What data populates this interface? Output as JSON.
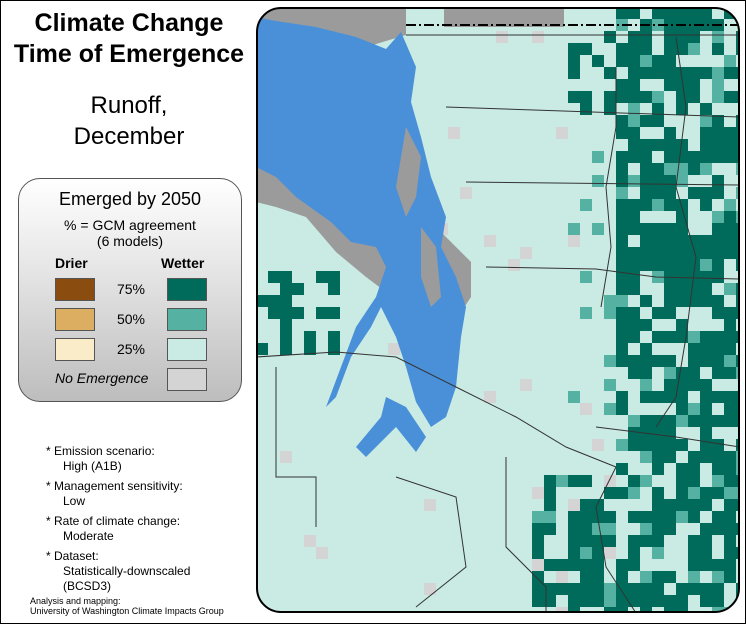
{
  "title_line1": "Climate Change",
  "title_line2": "Time of Emergence",
  "subtitle_line1": "Runoff,",
  "subtitle_line2": "December",
  "legend": {
    "heading": "Emerged by 2050",
    "subheading_line1": "% = GCM agreement",
    "subheading_line2": "(6 models)",
    "drier_label": "Drier",
    "wetter_label": "Wetter",
    "levels": [
      "75%",
      "50%",
      "25%"
    ],
    "no_emergence_label": "No Emergence",
    "colors": {
      "drier_75": "#8b4c10",
      "drier_50": "#dcae62",
      "drier_25": "#faecc8",
      "wetter_75": "#006b5b",
      "wetter_50": "#55b2a2",
      "wetter_25": "#c9ebe3",
      "no_emergence": "#d4d4d4",
      "water": "#4a90d9",
      "no_data": "#9b9b9b"
    }
  },
  "notes": [
    {
      "label": "* Emission scenario:",
      "value": "High (A1B)"
    },
    {
      "label": "* Management sensitivity:",
      "value": "Low"
    },
    {
      "label": "* Rate of climate change:",
      "value": "Moderate"
    },
    {
      "label": "* Dataset:",
      "value": "Statistically-downscaled (BCSD3)"
    }
  ],
  "credit_line1": "Analysis and mapping:",
  "credit_line2": "University of Washington Climate Impacts Group"
}
